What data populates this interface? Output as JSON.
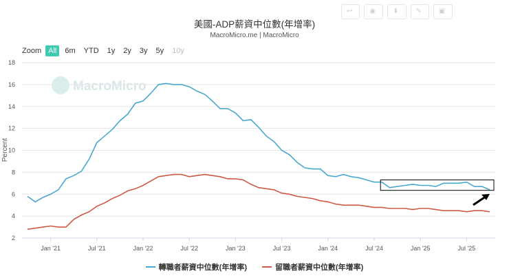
{
  "toolbar": {
    "buttons": [
      {
        "label": "",
        "icon": "back-icon"
      },
      {
        "label": "",
        "icon": "share-icon"
      },
      {
        "label": "",
        "icon": "download-icon"
      },
      {
        "label": "",
        "icon": "edit-icon"
      },
      {
        "label": "",
        "icon": "fullscreen-icon"
      }
    ]
  },
  "zoom": {
    "label": "Zoom",
    "options": [
      "All",
      "6m",
      "YTD",
      "1y",
      "2y",
      "3y",
      "5y",
      "10y"
    ],
    "active": "All",
    "disabled": [
      "10y"
    ]
  },
  "watermark": "MacroMicro",
  "colors": {
    "series1": "#4aa8cf",
    "series2": "#cf5a43",
    "highlight_box": "#000000",
    "zoom_active": "#3ec9b1"
  },
  "chart_data": {
    "type": "line",
    "title": "美國-ADP薪資中位數(年增率)",
    "subtitle": "MacroMicro.me | MacroMicro",
    "ylabel": "Percent",
    "ylim": [
      2,
      18
    ],
    "yticks": [
      2,
      4,
      6,
      8,
      10,
      12,
      14,
      16,
      18
    ],
    "xticks": [
      "Jan '21",
      "Jul '21",
      "Jan '22",
      "Jul '22",
      "Jan '23",
      "Jul '23",
      "Jan '24",
      "Jul '24",
      "Jan '25",
      "Jul '25"
    ],
    "x_start": "2020-10",
    "x_end": "2025-10",
    "grid": true,
    "legend_position": "bottom",
    "series": [
      {
        "name": "轉職者薪資中位數(年增率)",
        "values": [
          [
            "2020-10",
            5.8
          ],
          [
            "2020-11",
            5.3
          ],
          [
            "2020-12",
            5.7
          ],
          [
            "2021-01",
            6.0
          ],
          [
            "2021-02",
            6.4
          ],
          [
            "2021-03",
            7.4
          ],
          [
            "2021-04",
            7.7
          ],
          [
            "2021-05",
            8.1
          ],
          [
            "2021-06",
            9.2
          ],
          [
            "2021-07",
            10.7
          ],
          [
            "2021-08",
            11.3
          ],
          [
            "2021-09",
            11.9
          ],
          [
            "2021-10",
            12.7
          ],
          [
            "2021-11",
            13.3
          ],
          [
            "2021-12",
            14.3
          ],
          [
            "2022-01",
            14.5
          ],
          [
            "2022-02",
            15.2
          ],
          [
            "2022-03",
            16.0
          ],
          [
            "2022-04",
            16.1
          ],
          [
            "2022-05",
            16.0
          ],
          [
            "2022-06",
            16.0
          ],
          [
            "2022-07",
            15.8
          ],
          [
            "2022-08",
            15.4
          ],
          [
            "2022-09",
            15.1
          ],
          [
            "2022-10",
            14.5
          ],
          [
            "2022-11",
            13.8
          ],
          [
            "2022-12",
            13.8
          ],
          [
            "2023-01",
            13.4
          ],
          [
            "2023-02",
            12.7
          ],
          [
            "2023-03",
            12.8
          ],
          [
            "2023-04",
            12.1
          ],
          [
            "2023-05",
            11.3
          ],
          [
            "2023-06",
            10.8
          ],
          [
            "2023-07",
            10.0
          ],
          [
            "2023-08",
            9.6
          ],
          [
            "2023-09",
            8.9
          ],
          [
            "2023-10",
            8.4
          ],
          [
            "2023-11",
            8.3
          ],
          [
            "2023-12",
            8.3
          ],
          [
            "2024-01",
            7.7
          ],
          [
            "2024-02",
            7.6
          ],
          [
            "2024-03",
            7.8
          ],
          [
            "2024-04",
            7.6
          ],
          [
            "2024-05",
            7.5
          ],
          [
            "2024-06",
            7.3
          ],
          [
            "2024-07",
            7.1
          ],
          [
            "2024-08",
            7.1
          ],
          [
            "2024-09",
            6.6
          ],
          [
            "2024-10",
            6.7
          ],
          [
            "2024-11",
            6.8
          ],
          [
            "2024-12",
            6.9
          ],
          [
            "2025-01",
            6.8
          ],
          [
            "2025-02",
            6.8
          ],
          [
            "2025-03",
            6.7
          ],
          [
            "2025-04",
            7.0
          ],
          [
            "2025-05",
            7.0
          ],
          [
            "2025-06",
            7.0
          ],
          [
            "2025-07",
            7.1
          ],
          [
            "2025-08",
            6.7
          ],
          [
            "2025-09",
            6.7
          ],
          [
            "2025-10",
            6.4
          ]
        ]
      },
      {
        "name": "留職者薪資中位數(年增率)",
        "values": [
          [
            "2020-10",
            2.8
          ],
          [
            "2020-11",
            2.9
          ],
          [
            "2020-12",
            3.0
          ],
          [
            "2021-01",
            3.1
          ],
          [
            "2021-02",
            3.0
          ],
          [
            "2021-03",
            3.0
          ],
          [
            "2021-04",
            3.7
          ],
          [
            "2021-05",
            4.1
          ],
          [
            "2021-06",
            4.4
          ],
          [
            "2021-07",
            4.9
          ],
          [
            "2021-08",
            5.2
          ],
          [
            "2021-09",
            5.6
          ],
          [
            "2021-10",
            5.9
          ],
          [
            "2021-11",
            6.3
          ],
          [
            "2021-12",
            6.5
          ],
          [
            "2022-01",
            6.8
          ],
          [
            "2022-02",
            7.2
          ],
          [
            "2022-03",
            7.6
          ],
          [
            "2022-04",
            7.7
          ],
          [
            "2022-05",
            7.8
          ],
          [
            "2022-06",
            7.8
          ],
          [
            "2022-07",
            7.6
          ],
          [
            "2022-08",
            7.7
          ],
          [
            "2022-09",
            7.8
          ],
          [
            "2022-10",
            7.7
          ],
          [
            "2022-11",
            7.6
          ],
          [
            "2022-12",
            7.4
          ],
          [
            "2023-01",
            7.4
          ],
          [
            "2023-02",
            7.3
          ],
          [
            "2023-03",
            6.9
          ],
          [
            "2023-04",
            6.6
          ],
          [
            "2023-05",
            6.5
          ],
          [
            "2023-06",
            6.4
          ],
          [
            "2023-07",
            6.1
          ],
          [
            "2023-08",
            6.0
          ],
          [
            "2023-09",
            5.8
          ],
          [
            "2023-10",
            5.7
          ],
          [
            "2023-11",
            5.6
          ],
          [
            "2023-12",
            5.4
          ],
          [
            "2024-01",
            5.3
          ],
          [
            "2024-02",
            5.1
          ],
          [
            "2024-03",
            5.0
          ],
          [
            "2024-04",
            5.0
          ],
          [
            "2024-05",
            5.0
          ],
          [
            "2024-06",
            4.9
          ],
          [
            "2024-07",
            4.8
          ],
          [
            "2024-08",
            4.8
          ],
          [
            "2024-09",
            4.7
          ],
          [
            "2024-10",
            4.7
          ],
          [
            "2024-11",
            4.7
          ],
          [
            "2024-12",
            4.6
          ],
          [
            "2025-01",
            4.7
          ],
          [
            "2025-02",
            4.7
          ],
          [
            "2025-03",
            4.6
          ],
          [
            "2025-04",
            4.5
          ],
          [
            "2025-05",
            4.5
          ],
          [
            "2025-06",
            4.5
          ],
          [
            "2025-07",
            4.4
          ],
          [
            "2025-08",
            4.5
          ],
          [
            "2025-09",
            4.5
          ],
          [
            "2025-10",
            4.4
          ]
        ]
      }
    ],
    "annotations": [
      {
        "type": "box",
        "x_from": "2024-08",
        "x_to": "2025-10",
        "y_from": 6.6,
        "y_to": 7.3
      },
      {
        "type": "arrow",
        "points_to": [
          "2025-10",
          6.4
        ]
      }
    ]
  }
}
